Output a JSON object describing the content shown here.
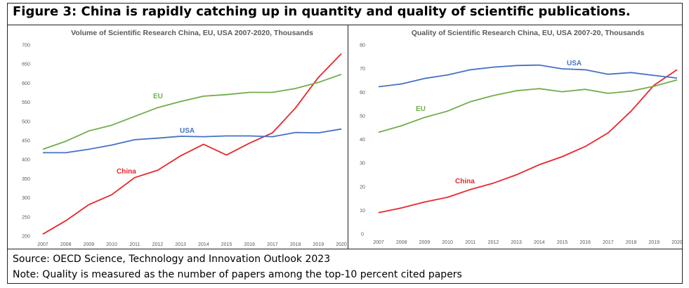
{
  "figure": {
    "title": "Figure 3: China is rapidly catching up in quantity and quality of scientific publications.",
    "source": "Source: OECD Science, Technology and Innovation Outlook 2023",
    "note": "Note: Quality is measured as the number of papers among the top-10 percent cited papers"
  },
  "colors": {
    "China": "#e8262a",
    "EU": "#70ad47",
    "USA": "#4472c4"
  },
  "chart_data": [
    {
      "type": "line",
      "title": "Volume of Scientific Research China, EU, USA 2007-2020, Thousands",
      "x": [
        "2007",
        "2008",
        "2009",
        "2010",
        "2011",
        "2012",
        "2013",
        "2014",
        "2015",
        "2016",
        "2017",
        "2018",
        "2019",
        "2020"
      ],
      "ylim": [
        200,
        700
      ],
      "yticks": [
        "200",
        "250",
        "300",
        "350",
        "400",
        "450",
        "500",
        "550",
        "600",
        "650",
        "700"
      ],
      "grid": false,
      "series": [
        {
          "name": "China",
          "values": [
            205,
            240,
            282,
            308,
            353,
            372,
            410,
            440,
            412,
            443,
            470,
            535,
            615,
            677
          ]
        },
        {
          "name": "EU",
          "values": [
            427,
            448,
            475,
            490,
            513,
            536,
            552,
            566,
            570,
            576,
            576,
            586,
            602,
            623
          ]
        },
        {
          "name": "USA",
          "values": [
            418,
            418,
            427,
            438,
            452,
            456,
            461,
            460,
            462,
            462,
            460,
            471,
            470,
            480
          ]
        }
      ],
      "series_labels": [
        "China",
        "EU",
        "USA"
      ]
    },
    {
      "type": "line",
      "title": "Quality of Scientific Research China, EU, USA 2007-20, Thousands",
      "x": [
        "2007",
        "2008",
        "2009",
        "2010",
        "2011",
        "2012",
        "2013",
        "2014",
        "2015",
        "2016",
        "2017",
        "2018",
        "2019",
        "2020"
      ],
      "ylim": [
        0,
        80
      ],
      "yticks": [
        "0",
        "10",
        "20",
        "30",
        "40",
        "50",
        "60",
        "70",
        "80"
      ],
      "grid": false,
      "series": [
        {
          "name": "China",
          "values": [
            9,
            11,
            13.5,
            15.5,
            18.8,
            21.5,
            25,
            29.3,
            32.7,
            37,
            42.8,
            52,
            63,
            69.5
          ]
        },
        {
          "name": "EU",
          "values": [
            43,
            45.8,
            49.3,
            52,
            56,
            58.6,
            60.6,
            61.5,
            60.2,
            61.2,
            59.5,
            60.5,
            62.5,
            65.2
          ]
        },
        {
          "name": "USA",
          "values": [
            62.3,
            63.5,
            65.8,
            67.3,
            69.5,
            70.6,
            71.3,
            71.5,
            69.9,
            69.5,
            67.6,
            68.3,
            67.1,
            66
          ]
        }
      ],
      "series_labels": [
        "China",
        "EU",
        "USA"
      ]
    }
  ]
}
